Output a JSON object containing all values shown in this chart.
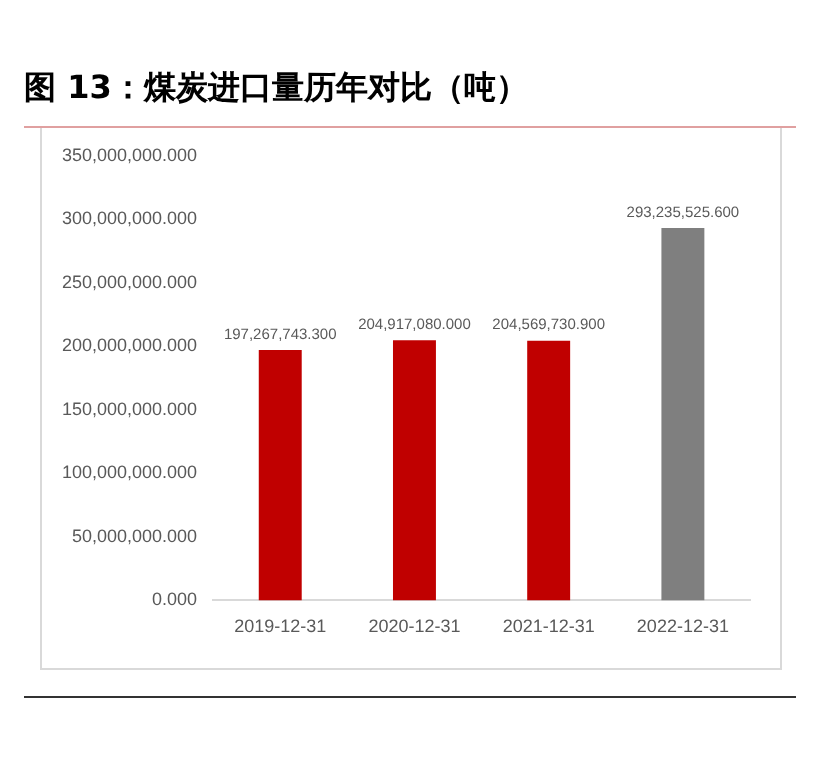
{
  "chart_data": {
    "type": "bar",
    "title": "图 13：煤炭进口量历年对比（吨）",
    "categories": [
      "2019-12-31",
      "2020-12-31",
      "2021-12-31",
      "2022-12-31"
    ],
    "values": [
      197267743.3,
      204917080,
      204569730.9,
      293235525.6
    ],
    "colors": [
      "#c00000",
      "#c00000",
      "#c00000",
      "#7f7f7f"
    ],
    "value_labels": [
      "197,267,743.300",
      "204,917,080.000",
      "204,569,730.900",
      "293,235,525.600"
    ],
    "ylim": [
      0,
      350000000
    ],
    "yticks": [
      {
        "value": 0,
        "label": "0.000"
      },
      {
        "value": 50000000,
        "label": "50,000,000.000"
      },
      {
        "value": 100000000,
        "label": "100,000,000.000"
      },
      {
        "value": 150000000,
        "label": "150,000,000.000"
      },
      {
        "value": 200000000,
        "label": "200,000,000.000"
      },
      {
        "value": 250000000,
        "label": "250,000,000.000"
      },
      {
        "value": 300000000,
        "label": "300,000,000.000"
      },
      {
        "value": 350000000,
        "label": "350,000,000.000"
      }
    ],
    "grid": false,
    "legend": false
  }
}
